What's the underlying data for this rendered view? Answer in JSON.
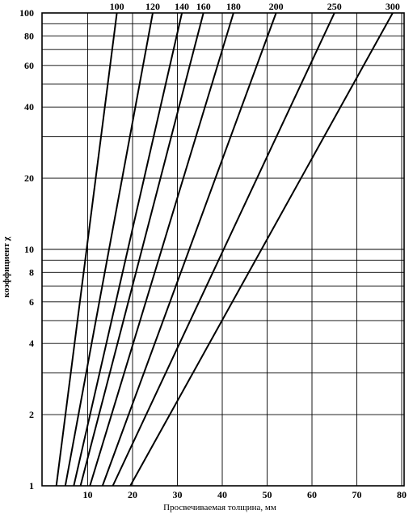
{
  "chart_data": {
    "type": "line",
    "xlabel": "Просвечиваемая толщина, мм",
    "ylabel": "коэффициент χ",
    "x_scale": "linear",
    "y_scale": "log",
    "xlim": [
      0,
      80
    ],
    "ylim": [
      1,
      100
    ],
    "grid": true,
    "x_ticks": [
      10,
      20,
      30,
      40,
      50,
      60,
      70,
      80
    ],
    "y_ticks": [
      1,
      2,
      4,
      6,
      8,
      10,
      20,
      40,
      60,
      80,
      100
    ],
    "x_tick_labels": [
      "10",
      "20",
      "30",
      "40",
      "50",
      "60",
      "70",
      "80"
    ],
    "y_tick_labels": [
      "1",
      "2",
      "4",
      "6",
      "8",
      "10",
      "20",
      "40",
      "60",
      "80",
      "100"
    ],
    "y_gridlines": [
      1,
      2,
      3,
      4,
      5,
      6,
      7,
      8,
      9,
      10,
      20,
      30,
      40,
      50,
      60,
      70,
      80,
      90,
      100
    ],
    "series": [
      {
        "name": "100",
        "x": [
          3.0,
          16.5
        ],
        "y": [
          1,
          100
        ]
      },
      {
        "name": "120",
        "x": [
          5.0,
          24.5
        ],
        "y": [
          1,
          100
        ]
      },
      {
        "name": "140",
        "x": [
          6.9,
          31.0
        ],
        "y": [
          1,
          100
        ]
      },
      {
        "name": "160",
        "x": [
          8.4,
          35.8
        ],
        "y": [
          1,
          100
        ]
      },
      {
        "name": "180",
        "x": [
          10.5,
          42.5
        ],
        "y": [
          1,
          100
        ]
      },
      {
        "name": "200",
        "x": [
          13.3,
          52.0
        ],
        "y": [
          1,
          100
        ]
      },
      {
        "name": "250",
        "x": [
          15.6,
          65.0
        ],
        "y": [
          1,
          100
        ]
      },
      {
        "name": "300",
        "x": [
          19.5,
          78.0
        ],
        "y": [
          1,
          100
        ]
      }
    ]
  }
}
